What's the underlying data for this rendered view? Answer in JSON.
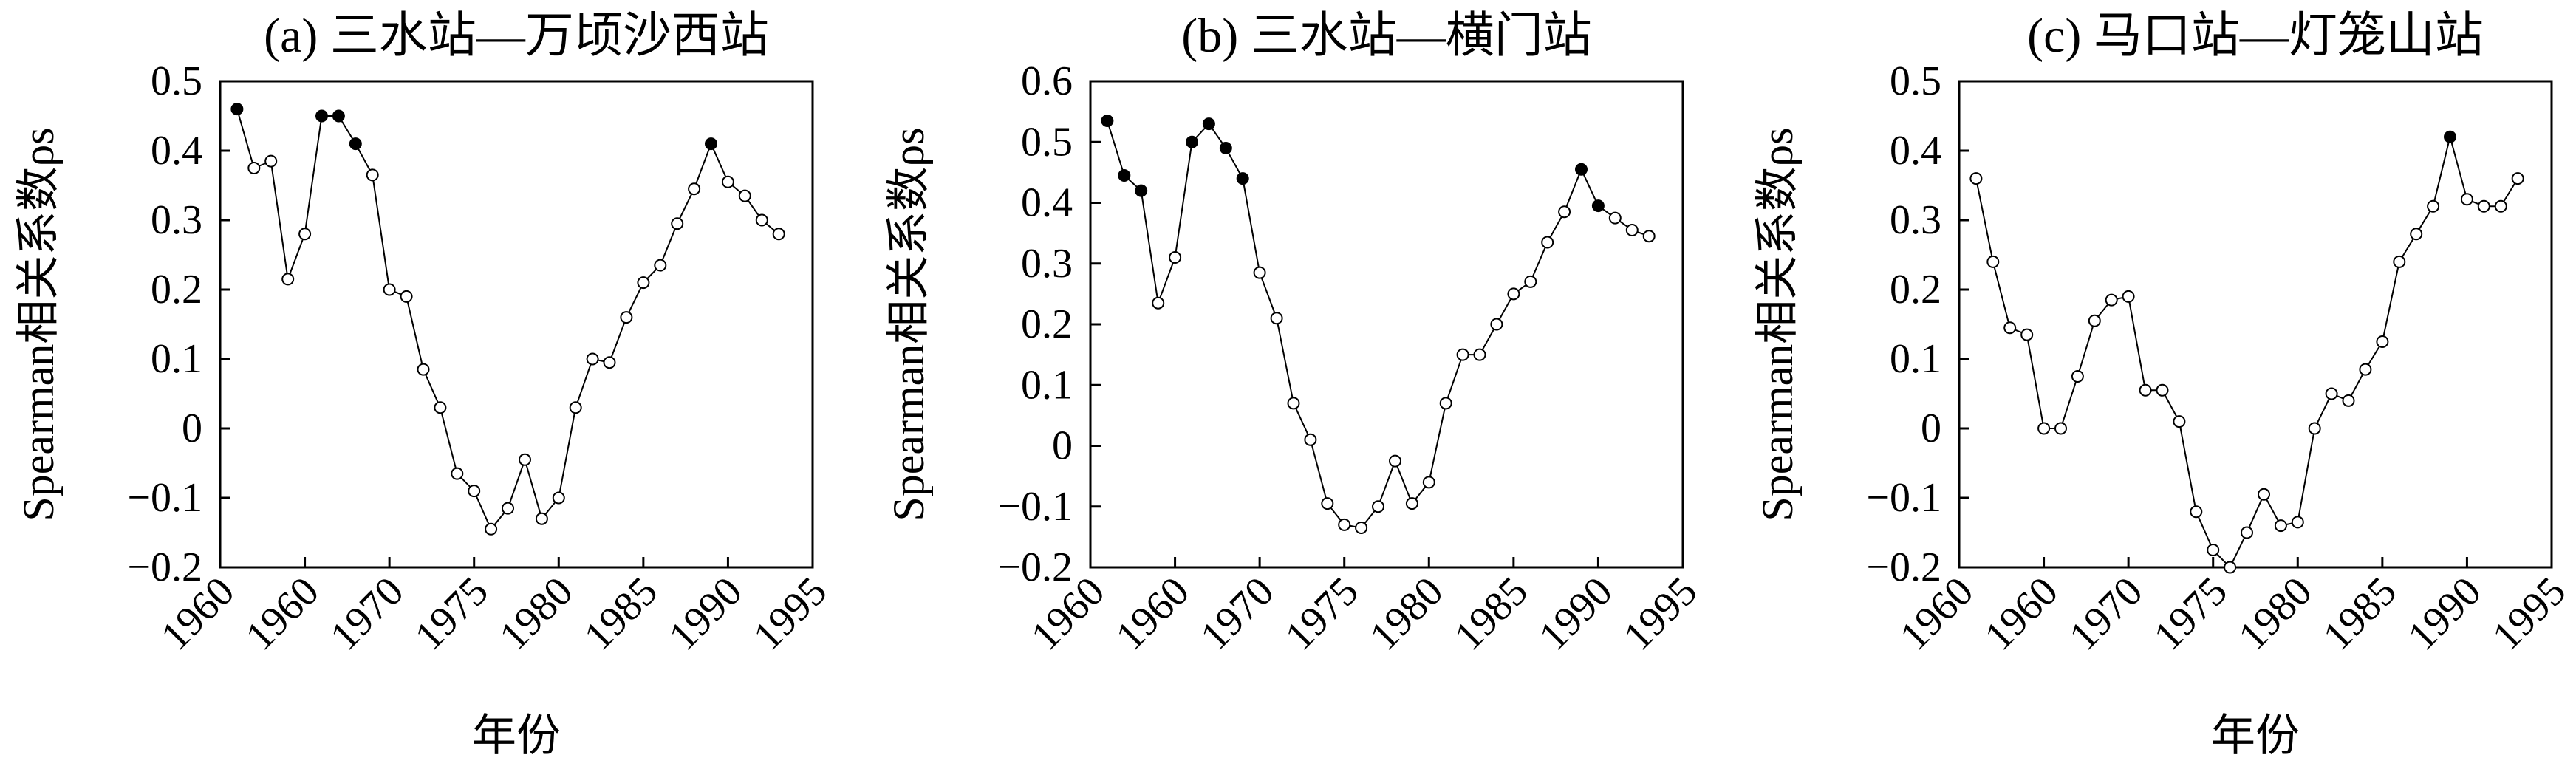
{
  "chart_data": [
    {
      "type": "line",
      "title": "(a) 三水站—万顷沙西站",
      "xlabel": "年份",
      "ylabel": "Spearman相关系数ρs",
      "ylim": [
        -0.2,
        0.5
      ],
      "yticks": [
        "−0.2",
        "−0.1",
        "0",
        "0.1",
        "0.2",
        "0.3",
        "0.4",
        "0.5"
      ],
      "xticks": [
        "1960",
        "1960",
        "1970",
        "1975",
        "1980",
        "1985",
        "1990",
        "1995"
      ],
      "x": [
        1961,
        1962,
        1963,
        1964,
        1965,
        1966,
        1967,
        1968,
        1969,
        1970,
        1971,
        1972,
        1973,
        1974,
        1975,
        1976,
        1977,
        1978,
        1979,
        1980,
        1981,
        1982,
        1983,
        1984,
        1985,
        1986,
        1987,
        1988,
        1989,
        1990,
        1991,
        1992,
        1993
      ],
      "values": [
        0.46,
        0.375,
        0.385,
        0.215,
        0.28,
        0.45,
        0.45,
        0.41,
        0.365,
        0.2,
        0.19,
        0.085,
        0.03,
        -0.065,
        -0.09,
        -0.145,
        -0.115,
        -0.045,
        -0.13,
        -0.1,
        0.03,
        0.1,
        0.095,
        0.16,
        0.21,
        0.235,
        0.295,
        0.345,
        0.41,
        0.355,
        0.335,
        0.3,
        0.28
      ],
      "significant": [
        true,
        false,
        false,
        false,
        false,
        true,
        true,
        true,
        false,
        false,
        false,
        false,
        false,
        false,
        false,
        false,
        false,
        false,
        false,
        false,
        false,
        false,
        false,
        false,
        false,
        false,
        false,
        false,
        true,
        false,
        false,
        false,
        false
      ]
    },
    {
      "type": "line",
      "title": "(b) 三水站—横门站",
      "xlabel": "",
      "ylabel": "Spearman相关系数ρs",
      "ylim": [
        -0.2,
        0.6
      ],
      "yticks": [
        "−0.2",
        "−0.1",
        "0",
        "0.1",
        "0.2",
        "0.3",
        "0.4",
        "0.5",
        "0.6"
      ],
      "xticks": [
        "1960",
        "1960",
        "1970",
        "1975",
        "1980",
        "1985",
        "1990",
        "1995"
      ],
      "x": [
        1961,
        1962,
        1963,
        1964,
        1965,
        1966,
        1967,
        1968,
        1969,
        1970,
        1971,
        1972,
        1973,
        1974,
        1975,
        1976,
        1977,
        1978,
        1979,
        1980,
        1981,
        1982,
        1983,
        1984,
        1985,
        1986,
        1987,
        1988,
        1989,
        1990,
        1991,
        1992,
        1993
      ],
      "values": [
        0.535,
        0.445,
        0.42,
        0.235,
        0.31,
        0.5,
        0.53,
        0.49,
        0.44,
        0.285,
        0.21,
        0.07,
        0.01,
        -0.095,
        -0.13,
        -0.135,
        -0.1,
        -0.025,
        -0.095,
        -0.06,
        0.07,
        0.15,
        0.15,
        0.2,
        0.25,
        0.27,
        0.335,
        0.385,
        0.455,
        0.395,
        0.375,
        0.355,
        0.345
      ],
      "significant": [
        true,
        true,
        true,
        false,
        false,
        true,
        true,
        true,
        true,
        false,
        false,
        false,
        false,
        false,
        false,
        false,
        false,
        false,
        false,
        false,
        false,
        false,
        false,
        false,
        false,
        false,
        false,
        false,
        true,
        true,
        false,
        false,
        false
      ]
    },
    {
      "type": "line",
      "title": "(c) 马口站—灯笼山站",
      "xlabel": "年份",
      "ylabel": "Spearman相关系数ρs",
      "ylim": [
        -0.2,
        0.5
      ],
      "yticks": [
        "−0.2",
        "−0.1",
        "0",
        "0.1",
        "0.2",
        "0.3",
        "0.4",
        "0.5"
      ],
      "xticks": [
        "1960",
        "1960",
        "1970",
        "1975",
        "1980",
        "1985",
        "1990",
        "1995"
      ],
      "x": [
        1961,
        1962,
        1963,
        1964,
        1965,
        1966,
        1967,
        1968,
        1969,
        1970,
        1971,
        1972,
        1973,
        1974,
        1975,
        1976,
        1977,
        1978,
        1979,
        1980,
        1981,
        1982,
        1983,
        1984,
        1985,
        1986,
        1987,
        1988,
        1989,
        1990,
        1991,
        1992,
        1993
      ],
      "values": [
        0.36,
        0.24,
        0.145,
        0.135,
        0.0,
        0.0,
        0.075,
        0.155,
        0.185,
        0.19,
        0.055,
        0.055,
        0.01,
        -0.12,
        -0.175,
        -0.2,
        -0.15,
        -0.095,
        -0.14,
        -0.135,
        0.0,
        0.05,
        0.04,
        0.085,
        0.125,
        0.24,
        0.28,
        0.32,
        0.42,
        0.33,
        0.32,
        0.32,
        0.36
      ],
      "significant": [
        false,
        false,
        false,
        false,
        false,
        false,
        false,
        false,
        false,
        false,
        false,
        false,
        false,
        false,
        false,
        false,
        false,
        false,
        false,
        false,
        false,
        false,
        false,
        false,
        false,
        false,
        false,
        false,
        true,
        false,
        false,
        false,
        false
      ]
    }
  ]
}
